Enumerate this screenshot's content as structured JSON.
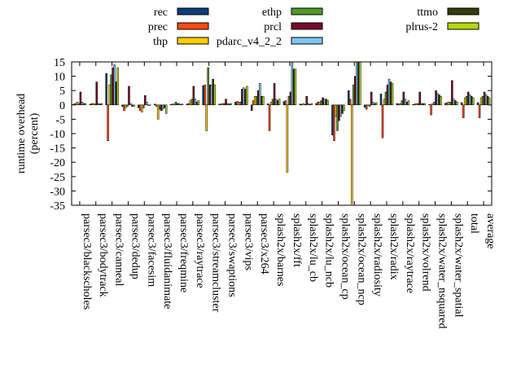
{
  "chart_data": {
    "type": "bar",
    "ylabel_lines": [
      "runtime overhead",
      "(percent)"
    ],
    "ylim": [
      -35,
      15
    ],
    "yticks": [
      "15",
      "10",
      "5",
      "0",
      "-5",
      "-10",
      "-15",
      "-20",
      "-25",
      "-30",
      "-35"
    ],
    "ytick_values": [
      15,
      10,
      5,
      0,
      -5,
      -10,
      -15,
      -20,
      -25,
      -30,
      -35
    ],
    "legend_position": "top",
    "categories": [
      "parsec3/blackscholes",
      "parsec3/bodytrack",
      "parsec3/canneal",
      "parsec3/dedup",
      "parsec3/facesim",
      "parsec3/fluidanimate",
      "parsec3/freqmine",
      "parsec3/raytrace",
      "parsec3/streamcluster",
      "parsec3/swaptions",
      "parsec3/vips",
      "parsec3/x264",
      "splash2x/barnes",
      "splash2x/fft",
      "splash2x/lu_cb",
      "splash2x/lu_ncb",
      "splash2x/ocean_cp",
      "splash2x/ocean_ncp",
      "splash2x/radiosity",
      "splash2x/radix",
      "splash2x/raytrace",
      "splash2x/volrend",
      "splash2x/water_nsquared",
      "splash2x/water_spatial",
      "total",
      "average"
    ],
    "series": [
      {
        "name": "rec",
        "color": "#0b3d7a",
        "values": [
          0.3,
          0.2,
          11.0,
          -0.5,
          -1.0,
          0.3,
          0.2,
          0.3,
          6.7,
          0.3,
          1.0,
          -2.0,
          0.4,
          1.2,
          0.3,
          0.5,
          -10.5,
          5.0,
          -0.8,
          3.8,
          0.5,
          0.2,
          0.2,
          0.6,
          0.8,
          0.8
        ]
      },
      {
        "name": "prec",
        "color": "#ff4a12",
        "values": [
          0.5,
          0.5,
          -12.5,
          -2.0,
          -2.0,
          -0.5,
          0.3,
          0.5,
          7.0,
          0.3,
          1.2,
          1.5,
          -9.0,
          1.5,
          0.2,
          1.0,
          -12.5,
          2.0,
          -1.5,
          -11.5,
          0.3,
          0.3,
          -3.5,
          0.8,
          -4.5,
          -4.5
        ]
      },
      {
        "name": "thp",
        "color": "#ffcc00",
        "values": [
          1.0,
          0.5,
          7.0,
          -1.0,
          -2.5,
          -5.0,
          0.3,
          1.5,
          -9.0,
          0.5,
          1.0,
          3.0,
          1.0,
          -23.5,
          0.5,
          1.0,
          -4.0,
          -34.5,
          0.0,
          2.0,
          0.5,
          0.5,
          0.5,
          1.0,
          2.5,
          2.5
        ]
      },
      {
        "name": "ethp",
        "color": "#4d9a27",
        "values": [
          0.5,
          0.3,
          10.5,
          -0.5,
          -1.0,
          -1.5,
          1.0,
          2.0,
          13.0,
          0.5,
          1.0,
          3.0,
          2.0,
          3.0,
          0.2,
          1.5,
          -9.0,
          7.0,
          -0.5,
          4.5,
          1.5,
          0.5,
          1.0,
          1.0,
          3.0,
          3.0
        ]
      },
      {
        "name": "prcl",
        "color": "#7a0a2a",
        "values": [
          4.5,
          8.0,
          13.0,
          6.5,
          3.3,
          -2.0,
          0.5,
          6.5,
          7.0,
          2.0,
          5.5,
          5.0,
          7.5,
          4.5,
          3.0,
          2.5,
          -5.5,
          10.0,
          4.5,
          7.0,
          4.5,
          4.5,
          5.0,
          8.5,
          4.5,
          4.5
        ]
      },
      {
        "name": "pdarc_v4_2_2",
        "color": "#7bc6f7",
        "values": [
          1.0,
          0.5,
          14.0,
          0.5,
          1.0,
          -1.5,
          0.5,
          2.0,
          7.0,
          0.5,
          6.0,
          7.5,
          2.0,
          15.0,
          0.5,
          2.0,
          -4.0,
          15.0,
          1.0,
          9.0,
          2.0,
          0.5,
          4.0,
          2.0,
          3.5,
          3.5
        ]
      },
      {
        "name": "ttmo",
        "color": "#333d0a",
        "values": [
          0.5,
          0.3,
          8.0,
          -0.5,
          0.0,
          -1.0,
          0.2,
          1.0,
          9.0,
          0.3,
          5.5,
          3.0,
          1.5,
          12.5,
          0.2,
          2.0,
          -3.0,
          15.0,
          0.5,
          8.0,
          1.0,
          0.5,
          3.5,
          1.5,
          3.0,
          3.0
        ]
      },
      {
        "name": "plrus-2",
        "color": "#b4d911",
        "values": [
          0.5,
          0.5,
          13.0,
          -0.5,
          0.0,
          -3.0,
          0.3,
          1.5,
          7.0,
          0.5,
          6.5,
          3.0,
          2.0,
          12.5,
          0.5,
          1.5,
          -2.0,
          15.0,
          0.8,
          7.5,
          1.5,
          0.5,
          3.0,
          1.0,
          2.5,
          2.5
        ]
      }
    ]
  }
}
